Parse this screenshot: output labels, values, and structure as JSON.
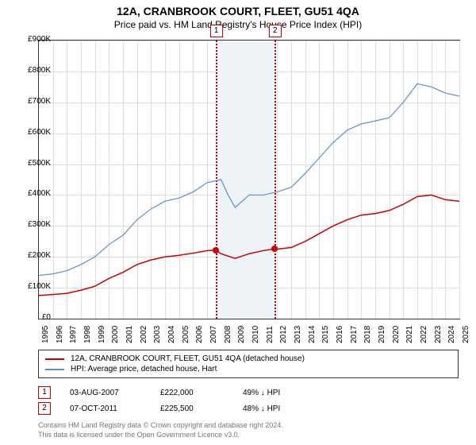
{
  "title": "12A, CRANBROOK COURT, FLEET, GU51 4QA",
  "subtitle": "Price paid vs. HM Land Registry's House Price Index (HPI)",
  "chart": {
    "type": "line",
    "ylim": [
      0,
      900000
    ],
    "ytick_step": 100000,
    "xlim": [
      1995,
      2025
    ],
    "xtick_step": 1,
    "grid_color": "#dddddd",
    "border_color": "#333333",
    "background_color": "#ffffff",
    "band": {
      "start": 2007.6,
      "end": 2011.8,
      "color": "#eef3f8"
    },
    "markers": [
      {
        "label": "1",
        "x": 2007.6,
        "y": 222000
      },
      {
        "label": "2",
        "x": 2011.8,
        "y": 225500
      }
    ],
    "series": [
      {
        "name": "property",
        "color": "#cc0000",
        "width": 1.5,
        "points": [
          [
            1995,
            75000
          ],
          [
            1996,
            78000
          ],
          [
            1997,
            82000
          ],
          [
            1998,
            92000
          ],
          [
            1999,
            105000
          ],
          [
            2000,
            130000
          ],
          [
            2001,
            150000
          ],
          [
            2002,
            175000
          ],
          [
            2003,
            190000
          ],
          [
            2004,
            200000
          ],
          [
            2005,
            205000
          ],
          [
            2006,
            212000
          ],
          [
            2007,
            220000
          ],
          [
            2007.6,
            222000
          ],
          [
            2008,
            210000
          ],
          [
            2009,
            195000
          ],
          [
            2010,
            210000
          ],
          [
            2011,
            220000
          ],
          [
            2011.8,
            225500
          ],
          [
            2012,
            225000
          ],
          [
            2013,
            230000
          ],
          [
            2014,
            250000
          ],
          [
            2015,
            275000
          ],
          [
            2016,
            300000
          ],
          [
            2017,
            320000
          ],
          [
            2018,
            335000
          ],
          [
            2019,
            340000
          ],
          [
            2020,
            350000
          ],
          [
            2021,
            370000
          ],
          [
            2022,
            395000
          ],
          [
            2023,
            400000
          ],
          [
            2024,
            385000
          ],
          [
            2025,
            380000
          ]
        ]
      },
      {
        "name": "hpi",
        "color": "#5b8fd6",
        "width": 1.2,
        "points": [
          [
            1995,
            140000
          ],
          [
            1996,
            145000
          ],
          [
            1997,
            155000
          ],
          [
            1998,
            175000
          ],
          [
            1999,
            200000
          ],
          [
            2000,
            240000
          ],
          [
            2001,
            270000
          ],
          [
            2002,
            320000
          ],
          [
            2003,
            355000
          ],
          [
            2004,
            380000
          ],
          [
            2005,
            390000
          ],
          [
            2006,
            410000
          ],
          [
            2007,
            440000
          ],
          [
            2008,
            450000
          ],
          [
            2008.5,
            400000
          ],
          [
            2009,
            360000
          ],
          [
            2010,
            400000
          ],
          [
            2011,
            400000
          ],
          [
            2012,
            410000
          ],
          [
            2013,
            425000
          ],
          [
            2014,
            470000
          ],
          [
            2015,
            520000
          ],
          [
            2016,
            570000
          ],
          [
            2017,
            610000
          ],
          [
            2018,
            630000
          ],
          [
            2019,
            640000
          ],
          [
            2020,
            650000
          ],
          [
            2021,
            700000
          ],
          [
            2022,
            760000
          ],
          [
            2023,
            750000
          ],
          [
            2024,
            730000
          ],
          [
            2025,
            720000
          ]
        ]
      }
    ]
  },
  "legend": {
    "property": "12A, CRANBROOK COURT, FLEET, GU51 4QA (detached house)",
    "hpi": "HPI: Average price, detached house, Hart"
  },
  "sales": [
    {
      "n": "1",
      "date": "03-AUG-2007",
      "price": "£222,000",
      "delta": "49% ↓ HPI"
    },
    {
      "n": "2",
      "date": "07-OCT-2011",
      "price": "£225,500",
      "delta": "48% ↓ HPI"
    }
  ],
  "footer": {
    "line1": "Contains HM Land Registry data © Crown copyright and database right 2024.",
    "line2": "This data is licensed under the Open Government Licence v3.0."
  },
  "ylabels": [
    "£0",
    "£100K",
    "£200K",
    "£300K",
    "£400K",
    "£500K",
    "£600K",
    "£700K",
    "£800K",
    "£900K"
  ],
  "xlabels": [
    "1995",
    "1996",
    "1997",
    "1998",
    "1999",
    "2000",
    "2001",
    "2002",
    "2003",
    "2004",
    "2005",
    "2006",
    "2007",
    "2008",
    "2009",
    "2010",
    "2011",
    "2012",
    "2013",
    "2014",
    "2015",
    "2016",
    "2017",
    "2018",
    "2019",
    "2020",
    "2021",
    "2022",
    "2023",
    "2024",
    "2025"
  ]
}
